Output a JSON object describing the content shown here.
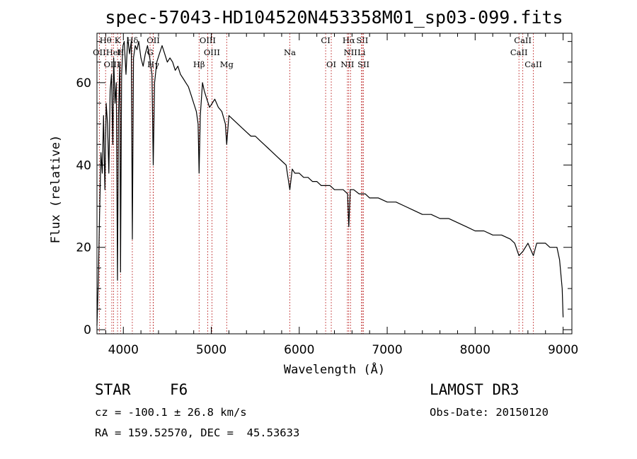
{
  "chart_data": {
    "type": "line",
    "title": "spec-57043-HD104520N453358M01_sp03-099.fits",
    "xlabel": "Wavelength (Å)",
    "ylabel": "Flux (relative)",
    "xlim": [
      3700,
      9100
    ],
    "ylim": [
      -1,
      72
    ],
    "xticks": [
      4000,
      5000,
      6000,
      7000,
      8000,
      9000
    ],
    "yticks": [
      0,
      20,
      40,
      60
    ],
    "grid": false,
    "series": [
      {
        "name": "flux",
        "x": [
          3700,
          3715,
          3730,
          3745,
          3760,
          3775,
          3790,
          3805,
          3820,
          3835,
          3850,
          3865,
          3880,
          3890,
          3905,
          3920,
          3933,
          3945,
          3960,
          3968,
          3980,
          3995,
          4010,
          4030,
          4050,
          4070,
          4090,
          4102,
          4115,
          4135,
          4155,
          4175,
          4200,
          4225,
          4250,
          4275,
          4300,
          4325,
          4340,
          4355,
          4380,
          4410,
          4440,
          4470,
          4500,
          4530,
          4560,
          4590,
          4620,
          4650,
          4680,
          4710,
          4740,
          4770,
          4800,
          4830,
          4850,
          4861,
          4875,
          4900,
          4920,
          4950,
          4980,
          5010,
          5040,
          5080,
          5120,
          5160,
          5175,
          5200,
          5250,
          5300,
          5350,
          5400,
          5450,
          5500,
          5550,
          5600,
          5650,
          5700,
          5750,
          5800,
          5850,
          5893,
          5920,
          5950,
          6000,
          6050,
          6100,
          6150,
          6200,
          6250,
          6300,
          6350,
          6400,
          6450,
          6500,
          6550,
          6563,
          6580,
          6620,
          6680,
          6750,
          6800,
          6900,
          7000,
          7100,
          7200,
          7300,
          7400,
          7500,
          7600,
          7700,
          7800,
          7900,
          8000,
          8100,
          8200,
          8300,
          8400,
          8450,
          8498,
          8542,
          8600,
          8662,
          8700,
          8800,
          8850,
          8900,
          8930,
          8960,
          8990,
          9000
        ],
        "values": [
          1,
          12,
          28,
          43,
          38,
          52,
          34,
          55,
          50,
          38,
          58,
          62,
          45,
          66,
          55,
          60,
          12,
          52,
          65,
          14,
          62,
          69,
          70,
          62,
          71,
          67,
          70,
          22,
          66,
          69,
          68,
          70,
          66,
          64,
          67,
          69,
          66,
          62,
          40,
          60,
          65,
          67,
          69,
          67,
          65,
          66,
          65,
          63,
          64,
          62,
          61,
          60,
          59,
          57,
          55,
          53,
          50,
          38,
          52,
          60,
          58,
          56,
          54,
          55,
          56,
          54,
          53,
          50,
          45,
          52,
          51,
          50,
          49,
          48,
          47,
          47,
          46,
          45,
          44,
          43,
          42,
          41,
          40,
          34,
          39,
          38,
          38,
          37,
          37,
          36,
          36,
          35,
          35,
          35,
          34,
          34,
          34,
          33,
          25,
          34,
          34,
          33,
          33,
          32,
          32,
          31,
          31,
          30,
          29,
          28,
          28,
          27,
          27,
          26,
          25,
          24,
          24,
          23,
          23,
          22,
          21,
          18,
          19,
          21,
          18,
          21,
          21,
          20,
          20,
          20,
          17,
          10,
          3
        ]
      }
    ],
    "spectral_lines": [
      {
        "name": "Hθ",
        "wave": 3798,
        "row": 0
      },
      {
        "name": "K",
        "wave": 3934,
        "row": 0
      },
      {
        "name": "Hδ",
        "wave": 4102,
        "row": 0
      },
      {
        "name": "OII",
        "wave": 4340,
        "row": 0
      },
      {
        "name": "OIII",
        "wave": 4959,
        "row": 0
      },
      {
        "name": "CI",
        "wave": 6300,
        "row": 0
      },
      {
        "name": "Hα",
        "wave": 6563,
        "row": 0
      },
      {
        "name": "SII",
        "wave": 6717,
        "row": 0
      },
      {
        "name": "CaII",
        "wave": 8542,
        "row": 0
      },
      {
        "name": "OII",
        "wave": 3727,
        "row": 1
      },
      {
        "name": "HeI",
        "wave": 3889,
        "row": 1
      },
      {
        "name": "H",
        "wave": 3968,
        "row": 1
      },
      {
        "name": "G",
        "wave": 4304,
        "row": 1
      },
      {
        "name": "OIII",
        "wave": 5007,
        "row": 1
      },
      {
        "name": "Na",
        "wave": 5893,
        "row": 1
      },
      {
        "name": "NII",
        "wave": 6583,
        "row": 1
      },
      {
        "name": "Li",
        "wave": 6708,
        "row": 1
      },
      {
        "name": "CaII",
        "wave": 8498,
        "row": 1
      },
      {
        "name": "OIII",
        "wave": 3869,
        "row": 2
      },
      {
        "name": "Hγ",
        "wave": 4340,
        "row": 2
      },
      {
        "name": "Hβ",
        "wave": 4861,
        "row": 2
      },
      {
        "name": "Mg",
        "wave": 5175,
        "row": 2
      },
      {
        "name": "OI",
        "wave": 6364,
        "row": 2
      },
      {
        "name": "NII",
        "wave": 6548,
        "row": 2
      },
      {
        "name": "SII",
        "wave": 6731,
        "row": 2
      },
      {
        "name": "CaII",
        "wave": 8662,
        "row": 2
      }
    ],
    "line_color": "#000000",
    "marker_color": "#c03030"
  },
  "info": {
    "object_class": "STAR",
    "subclass": "F6",
    "survey": "LAMOST DR3",
    "redshift": "cz = -100.1 ± 26.8 km/s",
    "obs_date": "Obs-Date: 20150120",
    "coords": "RA = 159.52570, DEC =  45.53633"
  }
}
